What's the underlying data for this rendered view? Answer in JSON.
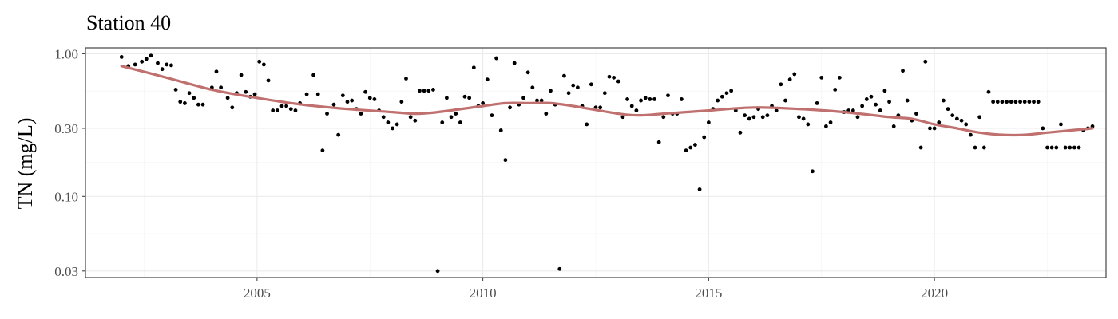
{
  "chart_data": {
    "type": "scatter",
    "title": "Station 40",
    "ylabel": "TN (mg/L)",
    "xlabel": "",
    "x_scale": "time (year)",
    "y_scale": "log10",
    "xlim": [
      2001.2,
      2023.8
    ],
    "ylim": [
      0.027,
      1.1
    ],
    "x_ticks": [
      2005,
      2010,
      2015,
      2020
    ],
    "x_tick_labels": [
      "2005",
      "2010",
      "2015",
      "2020"
    ],
    "y_ticks": [
      0.03,
      0.1,
      0.3,
      1.0
    ],
    "y_tick_labels": [
      "0.03",
      "0.10",
      "0.30",
      "1.00"
    ],
    "grid": true,
    "legend": "none",
    "point_color": "#000000",
    "smooth_color": "#c0706e",
    "series": [
      {
        "type": "scatter",
        "points": [
          [
            2002.0,
            0.95
          ],
          [
            2002.15,
            0.82
          ],
          [
            2002.3,
            0.84
          ],
          [
            2002.45,
            0.88
          ],
          [
            2002.55,
            0.92
          ],
          [
            2002.65,
            0.97
          ],
          [
            2002.8,
            0.86
          ],
          [
            2002.9,
            0.78
          ],
          [
            2003.0,
            0.84
          ],
          [
            2003.1,
            0.83
          ],
          [
            2003.2,
            0.56
          ],
          [
            2003.3,
            0.46
          ],
          [
            2003.4,
            0.45
          ],
          [
            2003.5,
            0.53
          ],
          [
            2003.6,
            0.49
          ],
          [
            2003.7,
            0.44
          ],
          [
            2003.8,
            0.44
          ],
          [
            2004.0,
            0.58
          ],
          [
            2004.1,
            0.75
          ],
          [
            2004.2,
            0.58
          ],
          [
            2004.35,
            0.49
          ],
          [
            2004.45,
            0.42
          ],
          [
            2004.55,
            0.53
          ],
          [
            2004.65,
            0.71
          ],
          [
            2004.75,
            0.54
          ],
          [
            2004.85,
            0.5
          ],
          [
            2004.95,
            0.52
          ],
          [
            2005.05,
            0.88
          ],
          [
            2005.15,
            0.84
          ],
          [
            2005.25,
            0.65
          ],
          [
            2005.35,
            0.4
          ],
          [
            2005.45,
            0.4
          ],
          [
            2005.55,
            0.43
          ],
          [
            2005.65,
            0.43
          ],
          [
            2005.75,
            0.41
          ],
          [
            2005.85,
            0.4
          ],
          [
            2005.95,
            0.45
          ],
          [
            2006.1,
            0.52
          ],
          [
            2006.25,
            0.71
          ],
          [
            2006.35,
            0.52
          ],
          [
            2006.45,
            0.21
          ],
          [
            2006.55,
            0.38
          ],
          [
            2006.7,
            0.44
          ],
          [
            2006.8,
            0.27
          ],
          [
            2006.9,
            0.51
          ],
          [
            2007.0,
            0.46
          ],
          [
            2007.1,
            0.47
          ],
          [
            2007.2,
            0.41
          ],
          [
            2007.3,
            0.38
          ],
          [
            2007.4,
            0.54
          ],
          [
            2007.5,
            0.49
          ],
          [
            2007.6,
            0.48
          ],
          [
            2007.7,
            0.4
          ],
          [
            2007.8,
            0.36
          ],
          [
            2007.9,
            0.33
          ],
          [
            2008.0,
            0.3
          ],
          [
            2008.1,
            0.32
          ],
          [
            2008.2,
            0.46
          ],
          [
            2008.3,
            0.67
          ],
          [
            2008.4,
            0.36
          ],
          [
            2008.5,
            0.34
          ],
          [
            2008.6,
            0.55
          ],
          [
            2008.7,
            0.55
          ],
          [
            2008.8,
            0.55
          ],
          [
            2008.9,
            0.56
          ],
          [
            2009.0,
            0.03
          ],
          [
            2009.1,
            0.33
          ],
          [
            2009.2,
            0.49
          ],
          [
            2009.3,
            0.36
          ],
          [
            2009.4,
            0.38
          ],
          [
            2009.5,
            0.33
          ],
          [
            2009.6,
            0.5
          ],
          [
            2009.7,
            0.49
          ],
          [
            2009.8,
            0.8
          ],
          [
            2009.9,
            0.43
          ],
          [
            2010.0,
            0.45
          ],
          [
            2010.1,
            0.66
          ],
          [
            2010.2,
            0.37
          ],
          [
            2010.3,
            0.93
          ],
          [
            2010.4,
            0.29
          ],
          [
            2010.5,
            0.18
          ],
          [
            2010.6,
            0.42
          ],
          [
            2010.7,
            0.86
          ],
          [
            2010.8,
            0.44
          ],
          [
            2010.9,
            0.49
          ],
          [
            2011.0,
            0.74
          ],
          [
            2011.1,
            0.58
          ],
          [
            2011.2,
            0.47
          ],
          [
            2011.3,
            0.47
          ],
          [
            2011.4,
            0.38
          ],
          [
            2011.5,
            0.55
          ],
          [
            2011.6,
            0.44
          ],
          [
            2011.7,
            0.031
          ],
          [
            2011.8,
            0.7
          ],
          [
            2011.9,
            0.53
          ],
          [
            2012.0,
            0.6
          ],
          [
            2012.1,
            0.58
          ],
          [
            2012.2,
            0.43
          ],
          [
            2012.3,
            0.32
          ],
          [
            2012.4,
            0.61
          ],
          [
            2012.5,
            0.42
          ],
          [
            2012.6,
            0.42
          ],
          [
            2012.7,
            0.53
          ],
          [
            2012.8,
            0.69
          ],
          [
            2012.9,
            0.68
          ],
          [
            2013.0,
            0.64
          ],
          [
            2013.1,
            0.36
          ],
          [
            2013.2,
            0.48
          ],
          [
            2013.3,
            0.43
          ],
          [
            2013.4,
            0.4
          ],
          [
            2013.5,
            0.47
          ],
          [
            2013.6,
            0.49
          ],
          [
            2013.7,
            0.48
          ],
          [
            2013.8,
            0.48
          ],
          [
            2013.9,
            0.24
          ],
          [
            2014.0,
            0.36
          ],
          [
            2014.1,
            0.51
          ],
          [
            2014.2,
            0.38
          ],
          [
            2014.3,
            0.38
          ],
          [
            2014.4,
            0.48
          ],
          [
            2014.5,
            0.21
          ],
          [
            2014.6,
            0.22
          ],
          [
            2014.7,
            0.23
          ],
          [
            2014.8,
            0.112
          ],
          [
            2014.9,
            0.26
          ],
          [
            2015.0,
            0.33
          ],
          [
            2015.1,
            0.41
          ],
          [
            2015.2,
            0.47
          ],
          [
            2015.3,
            0.5
          ],
          [
            2015.4,
            0.53
          ],
          [
            2015.5,
            0.55
          ],
          [
            2015.6,
            0.4
          ],
          [
            2015.7,
            0.28
          ],
          [
            2015.8,
            0.37
          ],
          [
            2015.9,
            0.35
          ],
          [
            2016.0,
            0.36
          ],
          [
            2016.1,
            0.41
          ],
          [
            2016.2,
            0.36
          ],
          [
            2016.3,
            0.37
          ],
          [
            2016.4,
            0.43
          ],
          [
            2016.5,
            0.4
          ],
          [
            2016.6,
            0.61
          ],
          [
            2016.7,
            0.47
          ],
          [
            2016.8,
            0.66
          ],
          [
            2016.9,
            0.72
          ],
          [
            2017.0,
            0.36
          ],
          [
            2017.1,
            0.35
          ],
          [
            2017.2,
            0.32
          ],
          [
            2017.3,
            0.15
          ],
          [
            2017.4,
            0.45
          ],
          [
            2017.5,
            0.68
          ],
          [
            2017.6,
            0.31
          ],
          [
            2017.7,
            0.33
          ],
          [
            2017.8,
            0.56
          ],
          [
            2017.9,
            0.68
          ],
          [
            2018.0,
            0.39
          ],
          [
            2018.1,
            0.4
          ],
          [
            2018.2,
            0.4
          ],
          [
            2018.3,
            0.36
          ],
          [
            2018.4,
            0.43
          ],
          [
            2018.5,
            0.48
          ],
          [
            2018.6,
            0.5
          ],
          [
            2018.7,
            0.44
          ],
          [
            2018.8,
            0.4
          ],
          [
            2018.9,
            0.55
          ],
          [
            2019.0,
            0.46
          ],
          [
            2019.1,
            0.31
          ],
          [
            2019.2,
            0.37
          ],
          [
            2019.3,
            0.76
          ],
          [
            2019.4,
            0.47
          ],
          [
            2019.5,
            0.34
          ],
          [
            2019.6,
            0.38
          ],
          [
            2019.7,
            0.22
          ],
          [
            2019.8,
            0.88
          ],
          [
            2019.9,
            0.3
          ],
          [
            2020.0,
            0.3
          ],
          [
            2020.1,
            0.33
          ],
          [
            2020.2,
            0.47
          ],
          [
            2020.3,
            0.41
          ],
          [
            2020.4,
            0.37
          ],
          [
            2020.5,
            0.35
          ],
          [
            2020.6,
            0.34
          ],
          [
            2020.7,
            0.32
          ],
          [
            2020.8,
            0.27
          ],
          [
            2020.9,
            0.22
          ],
          [
            2021.0,
            0.36
          ],
          [
            2021.1,
            0.22
          ],
          [
            2021.2,
            0.54
          ],
          [
            2021.3,
            0.46
          ],
          [
            2021.4,
            0.46
          ],
          [
            2021.5,
            0.46
          ],
          [
            2021.6,
            0.46
          ],
          [
            2021.7,
            0.46
          ],
          [
            2021.8,
            0.46
          ],
          [
            2021.9,
            0.46
          ],
          [
            2022.0,
            0.46
          ],
          [
            2022.1,
            0.46
          ],
          [
            2022.2,
            0.46
          ],
          [
            2022.3,
            0.46
          ],
          [
            2022.4,
            0.3
          ],
          [
            2022.5,
            0.22
          ],
          [
            2022.6,
            0.22
          ],
          [
            2022.7,
            0.22
          ],
          [
            2022.8,
            0.32
          ],
          [
            2022.9,
            0.22
          ],
          [
            2023.0,
            0.22
          ],
          [
            2023.1,
            0.22
          ],
          [
            2023.2,
            0.22
          ],
          [
            2023.3,
            0.29
          ],
          [
            2023.4,
            0.3
          ],
          [
            2023.5,
            0.31
          ]
        ]
      },
      {
        "type": "smooth",
        "points": [
          [
            2002.0,
            0.82
          ],
          [
            2003.0,
            0.68
          ],
          [
            2004.0,
            0.56
          ],
          [
            2005.0,
            0.49
          ],
          [
            2006.0,
            0.44
          ],
          [
            2007.0,
            0.41
          ],
          [
            2008.0,
            0.39
          ],
          [
            2008.5,
            0.38
          ],
          [
            2009.0,
            0.39
          ],
          [
            2010.0,
            0.43
          ],
          [
            2010.5,
            0.45
          ],
          [
            2011.0,
            0.45
          ],
          [
            2011.5,
            0.45
          ],
          [
            2012.0,
            0.43
          ],
          [
            2013.0,
            0.38
          ],
          [
            2013.5,
            0.37
          ],
          [
            2014.0,
            0.38
          ],
          [
            2015.0,
            0.4
          ],
          [
            2016.0,
            0.42
          ],
          [
            2017.0,
            0.41
          ],
          [
            2018.0,
            0.39
          ],
          [
            2019.0,
            0.36
          ],
          [
            2019.5,
            0.35
          ],
          [
            2020.0,
            0.32
          ],
          [
            2020.5,
            0.3
          ],
          [
            2021.0,
            0.28
          ],
          [
            2021.5,
            0.27
          ],
          [
            2022.0,
            0.27
          ],
          [
            2022.5,
            0.28
          ],
          [
            2023.0,
            0.29
          ],
          [
            2023.5,
            0.3
          ]
        ]
      }
    ]
  }
}
